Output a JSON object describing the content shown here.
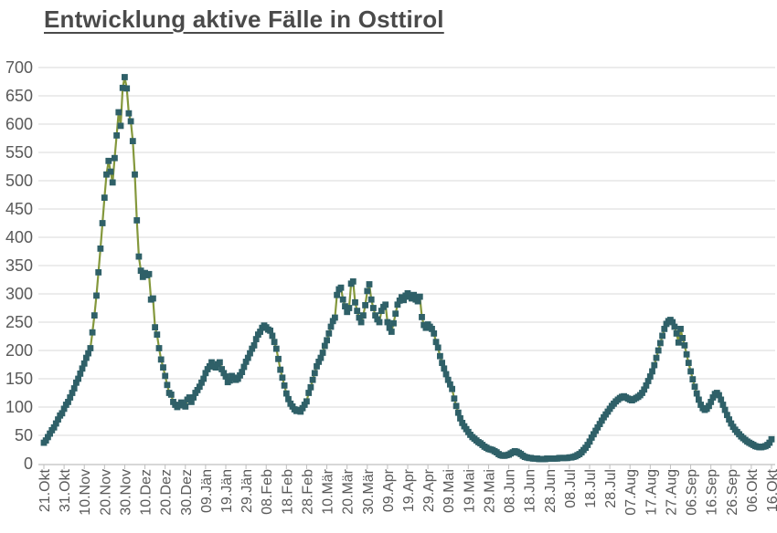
{
  "title": "Entwicklung aktive Fälle in Osttirol",
  "colors": {
    "line": "#84983C",
    "marker": "#2F6068",
    "grid": "#D9D9D9",
    "axis": "#BFBFBF",
    "tick_text": "#595959",
    "title_text": "#4A4A4A",
    "background": "#FFFFFF"
  },
  "chart_data": {
    "type": "line",
    "title": "Entwicklung aktive Fälle in Osttirol",
    "xlabel": "",
    "ylabel": "",
    "ylim": [
      0,
      700
    ],
    "y_tick_step": 50,
    "y_tick_labels": [
      "0",
      "50",
      "100",
      "150",
      "200",
      "250",
      "300",
      "350",
      "400",
      "450",
      "500",
      "550",
      "600",
      "650",
      "700"
    ],
    "x_tick_labels": [
      "21.Okt",
      "31.Okt",
      "10.Nov",
      "20.Nov",
      "30.Nov",
      "10.Dez",
      "20.Dez",
      "30.Dez",
      "09.Jän",
      "19.Jän",
      "29.Jän",
      "08.Feb",
      "18.Feb",
      "28.Feb",
      "10.Mär",
      "20.Mär",
      "30.Mär",
      "09.Apr",
      "19.Apr",
      "29.Apr",
      "09.Mai",
      "19.Mai",
      "29.Mai",
      "08.Jun",
      "18.Jun",
      "28.Jun",
      "08.Jul",
      "18.Jul",
      "28.Jul",
      "07.Aug",
      "17.Aug",
      "27.Aug",
      "06.Sep",
      "16.Sep",
      "26.Sep",
      "06.Okt",
      "16.Okt"
    ],
    "x_label_interval_days": 10,
    "grid": "horizontal-only",
    "legend": "none",
    "marker_shape": "square",
    "series": [
      {
        "name": "aktive Fälle",
        "values": [
          37,
          41,
          47,
          53,
          59,
          64,
          71,
          78,
          85,
          89,
          97,
          104,
          109,
          117,
          125,
          133,
          143,
          150,
          159,
          168,
          177,
          187,
          195,
          204,
          232,
          262,
          297,
          338,
          380,
          425,
          470,
          511,
          535,
          516,
          497,
          540,
          580,
          621,
          597,
          664,
          683,
          663,
          619,
          605,
          570,
          511,
          430,
          366,
          341,
          330,
          337,
          333,
          335,
          290,
          292,
          241,
          228,
          204,
          184,
          170,
          155,
          139,
          125,
          122,
          109,
          104,
          100,
          103,
          108,
          104,
          101,
          113,
          117,
          109,
          117,
          125,
          130,
          136,
          143,
          150,
          160,
          167,
          172,
          179,
          172,
          170,
          176,
          179,
          167,
          160,
          154,
          144,
          147,
          155,
          152,
          148,
          150,
          156,
          162,
          171,
          180,
          187,
          195,
          203,
          209,
          220,
          228,
          233,
          240,
          244,
          241,
          237,
          235,
          226,
          215,
          203,
          185,
          166,
          152,
          138,
          124,
          114,
          106,
          101,
          96,
          93,
          95,
          92,
          98,
          104,
          110,
          125,
          135,
          148,
          160,
          172,
          180,
          187,
          196,
          208,
          218,
          230,
          242,
          252,
          258,
          298,
          308,
          311,
          290,
          278,
          268,
          275,
          318,
          322,
          285,
          270,
          258,
          250,
          262,
          280,
          305,
          317,
          290,
          275,
          262,
          255,
          250,
          270,
          277,
          281,
          250,
          240,
          233,
          248,
          265,
          281,
          288,
          294,
          289,
          297,
          301,
          295,
          292,
          298,
          290,
          287,
          295,
          259,
          245,
          240,
          246,
          242,
          238,
          230,
          215,
          205,
          190,
          178,
          168,
          158,
          148,
          140,
          132,
          115,
          102,
          90,
          80,
          72,
          66,
          61,
          56,
          51,
          47,
          44,
          41,
          38,
          36,
          33,
          30,
          28,
          26,
          25,
          24,
          22,
          20,
          17,
          15,
          14,
          14,
          15,
          16,
          18,
          20,
          22,
          21,
          19,
          17,
          14,
          12,
          11,
          10,
          10,
          9,
          9,
          9,
          8,
          8,
          8,
          8,
          9,
          9,
          9,
          9,
          9,
          9,
          10,
          10,
          10,
          10,
          10,
          11,
          11,
          12,
          13,
          15,
          17,
          20,
          24,
          28,
          33,
          39,
          46,
          52,
          58,
          64,
          70,
          76,
          82,
          87,
          92,
          97,
          102,
          106,
          110,
          113,
          116,
          118,
          119,
          117,
          115,
          113,
          112,
          114,
          116,
          118,
          121,
          125,
          131,
          138,
          146,
          154,
          163,
          174,
          187,
          200,
          213,
          226,
          238,
          247,
          252,
          254,
          250,
          242,
          230,
          214,
          238,
          222,
          209,
          193,
          178,
          163,
          149,
          136,
          124,
          113,
          104,
          98,
          95,
          97,
          102,
          109,
          117,
          123,
          125,
          121,
          113,
          104,
          95,
          86,
          78,
          71,
          65,
          60,
          56,
          52,
          48,
          45,
          42,
          39,
          37,
          35,
          33,
          31,
          30,
          29,
          29,
          30,
          31,
          33,
          37,
          43
        ]
      }
    ]
  }
}
